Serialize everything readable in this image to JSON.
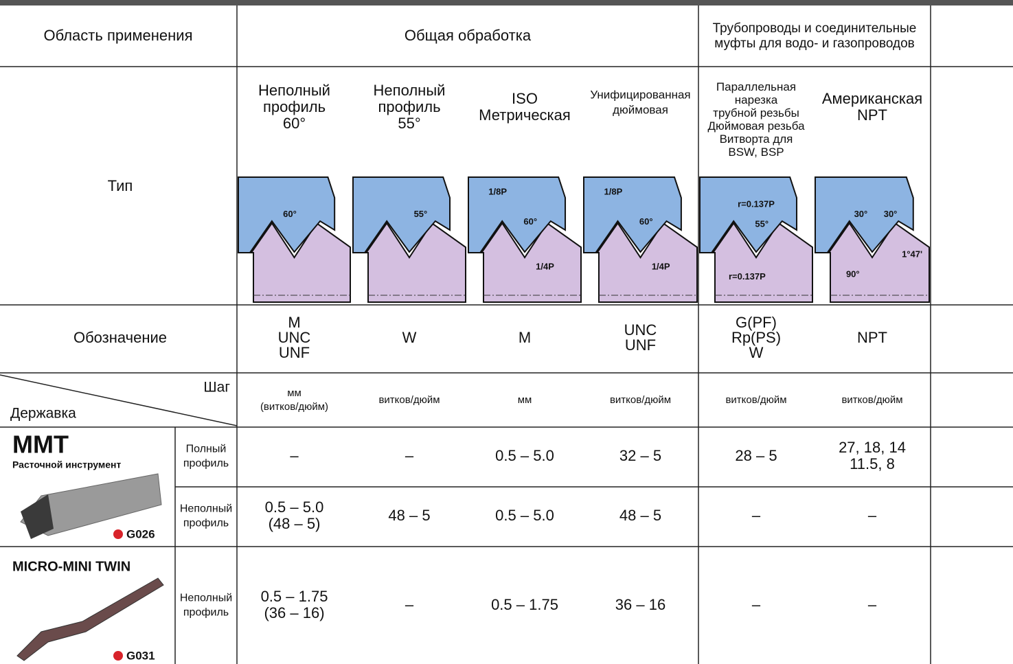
{
  "header": {
    "application_label": "Область применения",
    "general": "Общая обработка",
    "piping": [
      "Трубопроводы и соединительные",
      "муфты для водо- и газопроводов"
    ]
  },
  "type_row": {
    "label": "Тип",
    "columns": [
      {
        "lines": [
          "Неполный",
          "профиль",
          "60°"
        ],
        "diagram_labels": [
          "60°"
        ]
      },
      {
        "lines": [
          "Неполный",
          "профиль",
          "55°"
        ],
        "diagram_labels": [
          "55°"
        ]
      },
      {
        "lines": [
          "ISO",
          "Метрическая"
        ],
        "diagram_labels": [
          "1/8P",
          "60°",
          "1/4P"
        ]
      },
      {
        "lines": [
          "Унифицированная",
          "дюймовая"
        ],
        "diagram_labels": [
          "1/8P",
          "60°",
          "1/4P"
        ]
      },
      {
        "lines": [
          "Параллельная",
          "нарезка",
          "трубной резьбы",
          "Дюймовая резьба",
          "Витворта для",
          "BSW, BSP"
        ],
        "diagram_labels": [
          "r=0.137P",
          "55°",
          "r=0.137P"
        ]
      },
      {
        "lines": [
          "Американская",
          "NPT"
        ],
        "diagram_labels": [
          "30°",
          "30°",
          "90°",
          "1°47'"
        ]
      }
    ]
  },
  "designation_row": {
    "label": "Обозначение",
    "columns": [
      [
        "M",
        "UNC",
        "UNF"
      ],
      [
        "W"
      ],
      [
        "M"
      ],
      [
        "UNC",
        "UNF"
      ],
      [
        "G(PF)",
        "Rp(PS)",
        "W"
      ],
      [
        "NPT"
      ]
    ]
  },
  "pitch_row": {
    "pitch_label": "Шаг",
    "holder_label": "Державка",
    "columns": [
      [
        "мм",
        "(витков/дюйм)"
      ],
      [
        "витков/дюйм"
      ],
      [
        "мм"
      ],
      [
        "витков/дюйм"
      ],
      [
        "витков/дюйм"
      ],
      [
        "витков/дюйм"
      ]
    ]
  },
  "holders": [
    {
      "name": "MMT",
      "subtitle": "Расточной инструмент",
      "ref": "G026",
      "rows": [
        {
          "profile": [
            "Полный",
            "профиль"
          ],
          "values": [
            [
              "–"
            ],
            [
              "–"
            ],
            [
              "0.5 – 5.0"
            ],
            [
              "32 – 5"
            ],
            [
              "28 – 5"
            ],
            [
              "27, 18, 14",
              "11.5, 8"
            ]
          ]
        },
        {
          "profile": [
            "Неполный",
            "профиль"
          ],
          "values": [
            [
              "0.5 – 5.0",
              "(48 – 5)"
            ],
            [
              "48 – 5"
            ],
            [
              "0.5 – 5.0"
            ],
            [
              "48 – 5"
            ],
            [
              "–"
            ],
            [
              "–"
            ]
          ]
        }
      ]
    },
    {
      "name": "MICRO-MINI TWIN",
      "ref": "G031",
      "rows": [
        {
          "profile": [
            "Неполный",
            "профиль"
          ],
          "values": [
            [
              "0.5 – 1.75",
              "(36 – 16)"
            ],
            [
              "–"
            ],
            [
              "0.5 – 1.75"
            ],
            [
              "36 – 16"
            ],
            [
              "–"
            ],
            [
              "–"
            ]
          ]
        }
      ]
    }
  ]
}
